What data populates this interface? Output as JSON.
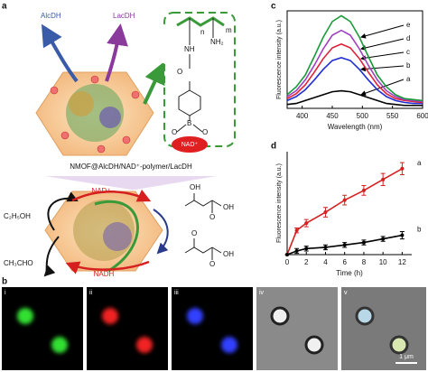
{
  "panel_labels": [
    "a",
    "b",
    "c",
    "d"
  ],
  "scheme": {
    "enzymes": [
      "AlcDH",
      "LacDH"
    ],
    "caption": "NMOF@AlcDH/NAD⁺-polymer/LacDH",
    "structure": {
      "n": "n",
      "m": "m",
      "nh": "NH",
      "nh2": "NH₂",
      "o_carbonyl": "O",
      "o_left": "O",
      "o_right": "O",
      "boron": "B",
      "nad": "NAD⁺"
    },
    "reaction": {
      "nad": "NAD⁺",
      "nadh": "NADH",
      "ethanol": "C₂H₅OH",
      "acetaldehyde": "CH₃CHO",
      "lactate": [
        "OH",
        "OH",
        "O"
      ],
      "pyruvate": [
        "O",
        "OH",
        "O"
      ]
    }
  },
  "micrographs": {
    "labels": [
      "i",
      "ii",
      "iii",
      "iv",
      "v"
    ],
    "scale_bar": "1 μm"
  },
  "chart_data": [
    {
      "type": "line",
      "frame": "box",
      "y_label": "Fluorescence intensity (a.u.)",
      "x_label": "Wavelength (nm)",
      "x": [
        375,
        390,
        405,
        420,
        435,
        450,
        465,
        480,
        495,
        510,
        525,
        540,
        555,
        570,
        585,
        600
      ],
      "xlim": [
        375,
        600
      ],
      "ylim": [
        0,
        100
      ],
      "xticks": [
        400,
        450,
        500,
        550,
        600
      ],
      "series": [
        {
          "name": "a",
          "color": "#000000",
          "values": [
            4,
            5,
            8,
            11,
            14,
            17,
            18,
            17,
            14,
            11,
            8,
            5,
            4,
            3,
            3,
            3
          ]
        },
        {
          "name": "b",
          "color": "#2030d0",
          "values": [
            8,
            12,
            19,
            29,
            40,
            49,
            52,
            49,
            40,
            29,
            19,
            12,
            8,
            6,
            5,
            5
          ]
        },
        {
          "name": "c",
          "color": "#e0203a",
          "values": [
            10,
            15,
            24,
            37,
            51,
            62,
            66,
            62,
            51,
            37,
            24,
            15,
            10,
            8,
            7,
            6
          ]
        },
        {
          "name": "d",
          "color": "#a040c0",
          "values": [
            12,
            18,
            29,
            44,
            61,
            75,
            80,
            75,
            61,
            44,
            29,
            18,
            12,
            9,
            8,
            7
          ]
        },
        {
          "name": "e",
          "color": "#1a9a3a",
          "values": [
            14,
            22,
            34,
            53,
            73,
            89,
            95,
            89,
            73,
            53,
            34,
            22,
            14,
            10,
            9,
            8
          ]
        }
      ]
    },
    {
      "type": "line",
      "frame": "axes",
      "markers": true,
      "y_label": "Fluorescence intensity (a.u.)",
      "x_label": "Time (h)",
      "x": [
        0,
        1,
        2,
        4,
        6,
        8,
        10,
        12
      ],
      "xlim": [
        0,
        13
      ],
      "ylim": [
        0,
        85
      ],
      "xticks": [
        0,
        2,
        4,
        6,
        8,
        10,
        12
      ],
      "series": [
        {
          "name": "a",
          "color": "#d62020",
          "values": [
            0,
            20,
            26,
            35,
            45,
            53,
            62,
            71
          ],
          "errors": [
            0,
            2,
            3,
            4,
            4,
            4,
            5,
            5
          ]
        },
        {
          "name": "b",
          "color": "#000000",
          "values": [
            0,
            3,
            5,
            6,
            8,
            10,
            13,
            16
          ],
          "errors": [
            0,
            2,
            2,
            2,
            2,
            2,
            2,
            3
          ]
        }
      ]
    }
  ]
}
